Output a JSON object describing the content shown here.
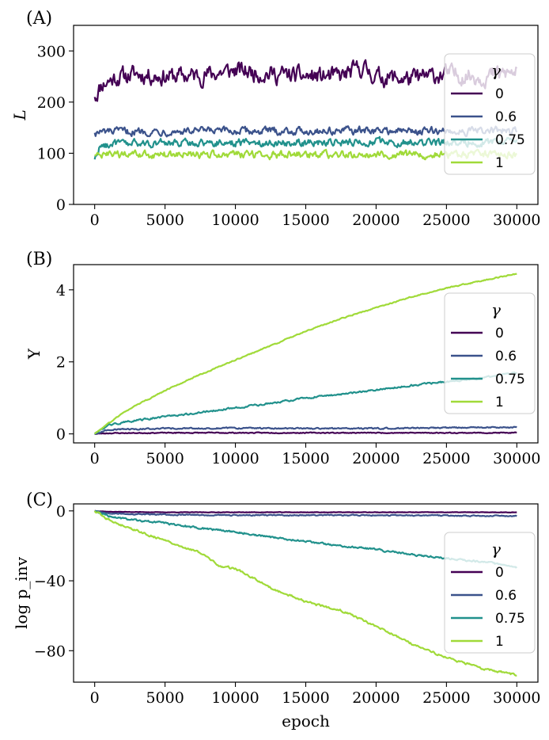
{
  "chart_data": [
    {
      "type": "line",
      "panel_label": "(A)",
      "title": "",
      "xlabel": "",
      "ylabel": "L",
      "xlim": [
        -1500,
        31500
      ],
      "ylim": [
        0,
        350
      ],
      "xticks": [
        0,
        5000,
        10000,
        15000,
        20000,
        25000,
        30000
      ],
      "xtick_labels": [
        "0",
        "5000",
        "10000",
        "15000",
        "20000",
        "25000",
        "30000"
      ],
      "yticks": [
        0,
        100,
        200,
        300
      ],
      "ytick_labels": [
        "0",
        "100",
        "200",
        "300"
      ],
      "grid": false,
      "legend": {
        "title": "γ",
        "placement": "right"
      },
      "noise": {
        "amp": [
          14,
          6,
          6,
          6
        ],
        "seed": 11
      },
      "series": [
        {
          "name": "0",
          "color": "#440154",
          "x": [
            0,
            500,
            1500,
            3000,
            5000,
            7500,
            10000,
            12500,
            15000,
            17500,
            19000,
            20000,
            22500,
            25000,
            27500,
            30000
          ],
          "y": [
            210,
            235,
            248,
            255,
            250,
            252,
            262,
            255,
            250,
            250,
            268,
            250,
            245,
            255,
            250,
            258
          ]
        },
        {
          "name": "0.6",
          "color": "#3b528b",
          "x": [
            0,
            1000,
            5000,
            10000,
            15000,
            20000,
            25000,
            30000
          ],
          "y": [
            140,
            142,
            143,
            143,
            144,
            144,
            143,
            144
          ]
        },
        {
          "name": "0.75",
          "color": "#21918c",
          "x": [
            0,
            300,
            1000,
            5000,
            10000,
            15000,
            20000,
            25000,
            30000
          ],
          "y": [
            88,
            110,
            118,
            120,
            121,
            121,
            122,
            121,
            122
          ]
        },
        {
          "name": "1",
          "color": "#a0da39",
          "x": [
            0,
            500,
            5000,
            10000,
            15000,
            20000,
            25000,
            30000
          ],
          "y": [
            95,
            96,
            97,
            97,
            97,
            98,
            97,
            98
          ]
        }
      ]
    },
    {
      "type": "line",
      "panel_label": "(B)",
      "title": "",
      "xlabel": "",
      "ylabel": "Υ",
      "xlim": [
        -1500,
        31500
      ],
      "ylim": [
        -0.25,
        4.7
      ],
      "xticks": [
        0,
        5000,
        10000,
        15000,
        20000,
        25000,
        30000
      ],
      "xtick_labels": [
        "0",
        "5000",
        "10000",
        "15000",
        "20000",
        "25000",
        "30000"
      ],
      "yticks": [
        0,
        2,
        4
      ],
      "ytick_labels": [
        "0",
        "2",
        "4"
      ],
      "grid": false,
      "legend": {
        "title": "γ",
        "placement": "right"
      },
      "noise": {
        "amp": [
          0.01,
          0.015,
          0.02,
          0.012
        ],
        "seed": 23
      },
      "series": [
        {
          "name": "0",
          "color": "#440154",
          "x": [
            0,
            1000,
            5000,
            10000,
            15000,
            20000,
            25000,
            30000
          ],
          "y": [
            0,
            0.02,
            0.03,
            0.03,
            0.03,
            0.03,
            0.03,
            0.03
          ]
        },
        {
          "name": "0.6",
          "color": "#3b528b",
          "x": [
            0,
            1000,
            5000,
            10000,
            15000,
            20000,
            25000,
            30000
          ],
          "y": [
            0,
            0.12,
            0.15,
            0.16,
            0.15,
            0.15,
            0.17,
            0.18
          ]
        },
        {
          "name": "0.75",
          "color": "#21918c",
          "x": [
            0,
            1000,
            2500,
            5000,
            7500,
            10000,
            12500,
            15000,
            17500,
            20000,
            22500,
            25000,
            27500,
            30000
          ],
          "y": [
            0,
            0.25,
            0.35,
            0.48,
            0.6,
            0.72,
            0.85,
            1.0,
            1.1,
            1.22,
            1.35,
            1.45,
            1.55,
            1.7
          ]
        },
        {
          "name": "1",
          "color": "#a0da39",
          "x": [
            0,
            1000,
            2500,
            5000,
            7500,
            10000,
            12500,
            15000,
            17500,
            20000,
            22500,
            25000,
            27500,
            30000
          ],
          "y": [
            0,
            0.3,
            0.7,
            1.2,
            1.65,
            2.05,
            2.45,
            2.85,
            3.2,
            3.5,
            3.8,
            4.05,
            4.25,
            4.45
          ]
        }
      ]
    },
    {
      "type": "line",
      "panel_label": "(C)",
      "title": "",
      "xlabel": "epoch",
      "ylabel": "log p_inv",
      "xlim": [
        -1500,
        31500
      ],
      "ylim": [
        -98,
        4
      ],
      "xticks": [
        0,
        5000,
        10000,
        15000,
        20000,
        25000,
        30000
      ],
      "xtick_labels": [
        "0",
        "5000",
        "10000",
        "15000",
        "20000",
        "25000",
        "30000"
      ],
      "yticks": [
        0,
        -40,
        -80
      ],
      "ytick_labels": [
        "0",
        "−40",
        "−80"
      ],
      "grid": false,
      "legend": {
        "title": "γ",
        "placement": "right"
      },
      "noise": {
        "amp": [
          0.1,
          0.25,
          0.45,
          0.5
        ],
        "seed": 37
      },
      "series": [
        {
          "name": "0",
          "color": "#440154",
          "x": [
            0,
            1000,
            5000,
            10000,
            15000,
            20000,
            25000,
            30000
          ],
          "y": [
            0,
            -0.5,
            -0.8,
            -0.8,
            -0.8,
            -0.8,
            -0.8,
            -0.8
          ]
        },
        {
          "name": "0.6",
          "color": "#3b528b",
          "x": [
            0,
            1000,
            5000,
            10000,
            15000,
            20000,
            25000,
            30000
          ],
          "y": [
            0,
            -1.5,
            -2.2,
            -2.5,
            -2.5,
            -2.5,
            -2.7,
            -3
          ]
        },
        {
          "name": "0.75",
          "color": "#21918c",
          "x": [
            0,
            1000,
            2500,
            5000,
            7500,
            10000,
            12500,
            15000,
            17500,
            20000,
            22500,
            25000,
            27500,
            30000
          ],
          "y": [
            0,
            -3,
            -5,
            -7,
            -10,
            -12,
            -15,
            -17.5,
            -20,
            -22,
            -25,
            -27,
            -29,
            -32
          ]
        },
        {
          "name": "1",
          "color": "#a0da39",
          "x": [
            0,
            1000,
            2500,
            5000,
            7500,
            9000,
            10000,
            12500,
            15000,
            17500,
            20000,
            22500,
            25000,
            27500,
            30000
          ],
          "y": [
            0,
            -5,
            -10,
            -17,
            -24,
            -32,
            -33,
            -44,
            -52,
            -57,
            -66,
            -76,
            -84,
            -90,
            -94
          ]
        }
      ]
    }
  ]
}
